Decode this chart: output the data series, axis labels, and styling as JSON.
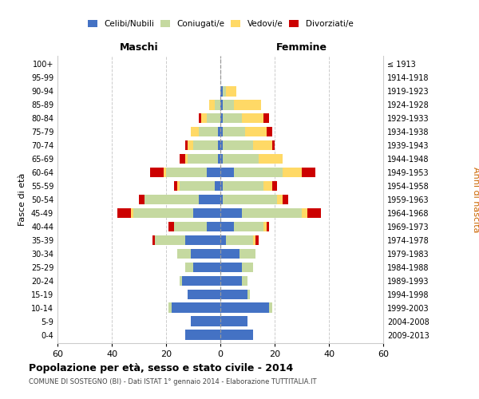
{
  "age_groups_bottom_to_top": [
    "0-4",
    "5-9",
    "10-14",
    "15-19",
    "20-24",
    "25-29",
    "30-34",
    "35-39",
    "40-44",
    "45-49",
    "50-54",
    "55-59",
    "60-64",
    "65-69",
    "70-74",
    "75-79",
    "80-84",
    "85-89",
    "90-94",
    "95-99",
    "100+"
  ],
  "birth_years_bottom_to_top": [
    "2009-2013",
    "2004-2008",
    "1999-2003",
    "1994-1998",
    "1989-1993",
    "1984-1988",
    "1979-1983",
    "1974-1978",
    "1969-1973",
    "1964-1968",
    "1959-1963",
    "1954-1958",
    "1949-1953",
    "1944-1948",
    "1939-1943",
    "1934-1938",
    "1929-1933",
    "1924-1928",
    "1919-1923",
    "1914-1918",
    "≤ 1913"
  ],
  "males": {
    "celibi": [
      13,
      11,
      18,
      12,
      14,
      10,
      11,
      13,
      5,
      10,
      8,
      2,
      5,
      1,
      1,
      1,
      0,
      0,
      0,
      0,
      0
    ],
    "coniugati": [
      0,
      0,
      1,
      0,
      1,
      3,
      5,
      11,
      12,
      22,
      20,
      13,
      15,
      11,
      9,
      7,
      5,
      2,
      0,
      0,
      0
    ],
    "vedovi": [
      0,
      0,
      0,
      0,
      0,
      0,
      0,
      0,
      0,
      1,
      0,
      1,
      1,
      1,
      2,
      3,
      2,
      2,
      0,
      0,
      0
    ],
    "divorziati": [
      0,
      0,
      0,
      0,
      0,
      0,
      0,
      1,
      2,
      5,
      2,
      1,
      5,
      2,
      1,
      0,
      1,
      0,
      0,
      0,
      0
    ]
  },
  "females": {
    "nubili": [
      12,
      10,
      18,
      10,
      8,
      8,
      7,
      2,
      5,
      8,
      1,
      1,
      5,
      1,
      1,
      1,
      1,
      1,
      1,
      0,
      0
    ],
    "coniugate": [
      0,
      0,
      1,
      1,
      2,
      4,
      6,
      10,
      11,
      22,
      20,
      15,
      18,
      13,
      11,
      8,
      7,
      4,
      1,
      0,
      0
    ],
    "vedove": [
      0,
      0,
      0,
      0,
      0,
      0,
      0,
      1,
      1,
      2,
      2,
      3,
      7,
      9,
      7,
      8,
      8,
      10,
      4,
      0,
      0
    ],
    "divorziate": [
      0,
      0,
      0,
      0,
      0,
      0,
      0,
      1,
      1,
      5,
      2,
      2,
      5,
      0,
      1,
      2,
      2,
      0,
      0,
      0,
      0
    ]
  },
  "colors": {
    "celibi": "#4472c4",
    "coniugati": "#c5d9a0",
    "vedovi": "#ffd966",
    "divorziati": "#cc0000"
  },
  "legend_labels": [
    "Celibi/Nubili",
    "Coniugati/e",
    "Vedovi/e",
    "Divorziati/e"
  ],
  "title": "Popolazione per età, sesso e stato civile - 2014",
  "subtitle": "COMUNE DI SOSTEGNO (BI) - Dati ISTAT 1° gennaio 2014 - Elaborazione TUTTITALIA.IT",
  "label_maschi": "Maschi",
  "label_femmine": "Femmine",
  "ylabel_left": "Fasce di età",
  "ylabel_right": "Anni di nascita",
  "xlim": 60,
  "bar_height": 0.75
}
